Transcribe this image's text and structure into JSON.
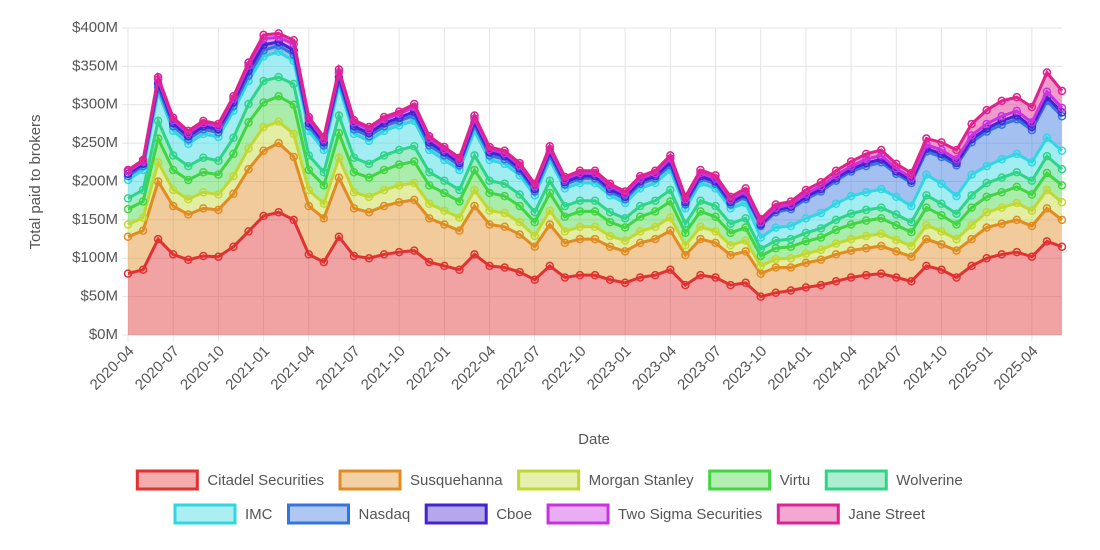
{
  "chart_data": {
    "type": "stacked_area",
    "x_label": "Date",
    "y_label": "Total paid to brokers",
    "x": [
      "2020-04",
      null,
      null,
      "2020-07",
      null,
      null,
      "2020-10",
      null,
      null,
      "2021-01",
      null,
      null,
      "2021-04",
      null,
      null,
      "2021-07",
      null,
      null,
      "2021-10",
      null,
      null,
      "2022-01",
      null,
      null,
      "2022-04",
      null,
      null,
      "2022-07",
      null,
      null,
      "2022-10",
      null,
      null,
      "2023-01",
      null,
      null,
      "2023-04",
      null,
      null,
      "2023-07",
      null,
      null,
      "2023-10",
      null,
      null,
      "2024-01",
      null,
      null,
      "2024-04",
      null,
      null,
      "2024-07",
      null,
      null,
      "2024-10",
      null,
      null,
      "2025-01",
      null,
      null,
      "2025-04",
      null,
      null
    ],
    "ylim": [
      0,
      400
    ],
    "yticks": [
      {
        "value": 0,
        "label": "$0M"
      },
      {
        "value": 50,
        "label": "$50M"
      },
      {
        "value": 100,
        "label": "$100M"
      },
      {
        "value": 150,
        "label": "$150M"
      },
      {
        "value": 200,
        "label": "$200M"
      },
      {
        "value": 250,
        "label": "$250M"
      },
      {
        "value": 300,
        "label": "$300M"
      },
      {
        "value": 350,
        "label": "$350M"
      },
      {
        "value": 400,
        "label": "$400M"
      }
    ],
    "grid": true,
    "legend": "bottom",
    "series": [
      {
        "name": "Citadel Securities",
        "color": "#e03232",
        "values": [
          80,
          85,
          125,
          105,
          98,
          103,
          102,
          115,
          135,
          155,
          160,
          150,
          105,
          95,
          128,
          103,
          100,
          105,
          108,
          110,
          95,
          90,
          85,
          105,
          90,
          88,
          82,
          72,
          90,
          75,
          78,
          78,
          72,
          68,
          75,
          78,
          85,
          65,
          78,
          75,
          65,
          68,
          50,
          55,
          58,
          62,
          65,
          70,
          75,
          78,
          80,
          75,
          70,
          90,
          85,
          75,
          90,
          100,
          105,
          108,
          102,
          122,
          115
        ]
      },
      {
        "name": "Susquehanna",
        "color": "#e08c22",
        "values": [
          48,
          51,
          75,
          63,
          59,
          62,
          61,
          69,
          81,
          85,
          90,
          82,
          63,
          57,
          77,
          62,
          60,
          63,
          65,
          66,
          57,
          54,
          51,
          63,
          54,
          53,
          49,
          43,
          54,
          45,
          47,
          47,
          43,
          41,
          45,
          47,
          51,
          39,
          47,
          45,
          39,
          41,
          30,
          33,
          30,
          32,
          33,
          35,
          35,
          35,
          36,
          34,
          32,
          35,
          33,
          35,
          35,
          40,
          40,
          42,
          40,
          43,
          35
        ]
      },
      {
        "name": "Morgan Stanley",
        "color": "#c2d832",
        "values": [
          16,
          17,
          25,
          21,
          20,
          21,
          20,
          23,
          27,
          31,
          28,
          30,
          21,
          19,
          26,
          21,
          20,
          21,
          22,
          22,
          19,
          18,
          17,
          21,
          18,
          18,
          16,
          14,
          18,
          15,
          16,
          16,
          14,
          14,
          15,
          16,
          17,
          13,
          16,
          15,
          13,
          14,
          10,
          11,
          12,
          12,
          13,
          14,
          15,
          16,
          16,
          15,
          14,
          18,
          17,
          15,
          18,
          20,
          21,
          22,
          20,
          24,
          23
        ]
      },
      {
        "name": "Virtu",
        "color": "#42d442",
        "values": [
          20,
          21,
          31,
          26,
          25,
          26,
          26,
          29,
          34,
          32,
          33,
          38,
          26,
          24,
          32,
          26,
          25,
          26,
          27,
          28,
          24,
          23,
          21,
          26,
          23,
          22,
          21,
          18,
          23,
          19,
          20,
          20,
          18,
          17,
          19,
          20,
          21,
          16,
          20,
          19,
          16,
          17,
          13,
          14,
          15,
          16,
          16,
          18,
          19,
          20,
          20,
          19,
          18,
          23,
          21,
          19,
          23,
          20,
          20,
          21,
          21,
          22,
          22
        ]
      },
      {
        "name": "Wolverine",
        "color": "#30d488",
        "values": [
          14,
          15,
          23,
          19,
          18,
          19,
          18,
          21,
          24,
          28,
          25,
          27,
          19,
          17,
          23,
          19,
          18,
          19,
          19,
          20,
          17,
          16,
          15,
          19,
          16,
          16,
          15,
          13,
          16,
          14,
          14,
          14,
          13,
          12,
          14,
          14,
          15,
          12,
          14,
          14,
          12,
          12,
          9,
          10,
          10,
          11,
          12,
          13,
          14,
          14,
          14,
          14,
          13,
          16,
          15,
          14,
          16,
          18,
          19,
          19,
          18,
          22,
          21
        ]
      },
      {
        "name": "IMC",
        "color": "#30d6e2",
        "values": [
          24,
          26,
          38,
          32,
          29,
          31,
          31,
          35,
          30,
          32,
          33,
          30,
          32,
          29,
          38,
          31,
          30,
          32,
          32,
          33,
          29,
          27,
          26,
          32,
          27,
          26,
          25,
          22,
          27,
          23,
          23,
          23,
          22,
          20,
          23,
          23,
          26,
          20,
          23,
          23,
          20,
          20,
          15,
          17,
          17,
          19,
          20,
          21,
          23,
          23,
          24,
          23,
          21,
          27,
          26,
          23,
          27,
          22,
          24,
          24,
          24,
          24,
          24
        ]
      },
      {
        "name": "Nasdaq",
        "color": "#3474e0",
        "values": [
          5,
          5,
          6,
          6,
          6,
          6,
          6,
          6,
          7,
          8,
          8,
          8,
          6,
          6,
          7,
          6,
          6,
          6,
          6,
          7,
          6,
          6,
          6,
          7,
          6,
          6,
          6,
          5,
          6,
          5,
          6,
          6,
          5,
          5,
          6,
          6,
          6,
          5,
          6,
          6,
          5,
          8,
          15,
          20,
          22,
          25,
          28,
          30,
          32,
          34,
          35,
          30,
          30,
          30,
          35,
          40,
          42,
          45,
          45,
          45,
          42,
          48,
          45
        ]
      },
      {
        "name": "Cboe",
        "color": "#4424d0",
        "values": [
          3,
          3,
          5,
          4,
          4,
          4,
          4,
          5,
          6,
          7,
          5,
          6,
          4,
          4,
          5,
          4,
          4,
          4,
          4,
          5,
          4,
          4,
          3,
          4,
          4,
          4,
          3,
          3,
          4,
          3,
          3,
          3,
          3,
          3,
          3,
          3,
          4,
          3,
          3,
          3,
          3,
          3,
          2,
          3,
          3,
          3,
          3,
          3,
          3,
          4,
          4,
          3,
          3,
          4,
          4,
          3,
          4,
          4,
          5,
          5,
          4,
          5,
          5
        ]
      },
      {
        "name": "Two Sigma Securities",
        "color": "#c832e0",
        "values": [
          3,
          3,
          5,
          4,
          4,
          4,
          4,
          5,
          7,
          8,
          6,
          8,
          5,
          4,
          6,
          5,
          5,
          5,
          5,
          6,
          5,
          4,
          4,
          5,
          4,
          4,
          4,
          4,
          4,
          4,
          4,
          4,
          4,
          4,
          4,
          4,
          5,
          4,
          4,
          4,
          4,
          4,
          3,
          3,
          3,
          4,
          4,
          4,
          4,
          5,
          5,
          4,
          4,
          5,
          5,
          5,
          5,
          6,
          6,
          6,
          6,
          7,
          6
        ]
      },
      {
        "name": "Jane Street",
        "color": "#e02290",
        "values": [
          2,
          2,
          3,
          3,
          3,
          3,
          3,
          3,
          4,
          5,
          5,
          5,
          3,
          3,
          4,
          3,
          3,
          3,
          3,
          4,
          3,
          3,
          3,
          4,
          3,
          3,
          3,
          3,
          4,
          3,
          3,
          3,
          3,
          3,
          3,
          3,
          4,
          3,
          4,
          4,
          3,
          4,
          4,
          4,
          4,
          5,
          5,
          6,
          6,
          7,
          7,
          6,
          6,
          8,
          10,
          12,
          15,
          18,
          20,
          18,
          20,
          25,
          22
        ]
      }
    ]
  }
}
